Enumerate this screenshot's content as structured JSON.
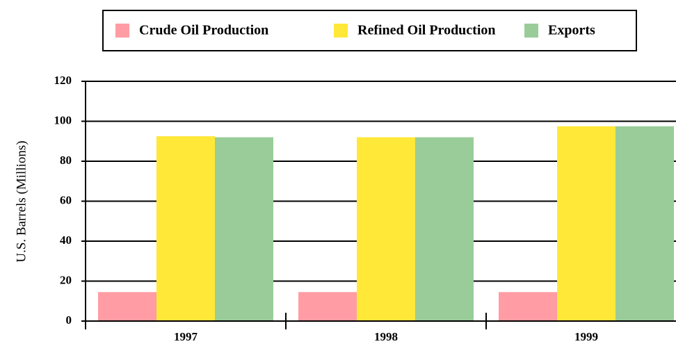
{
  "chart_data": {
    "type": "bar",
    "y_label": "U.S. Barrels (Millions)",
    "categories": [
      "1997",
      "1998",
      "1999"
    ],
    "series": [
      {
        "name": "Crude Oil Production",
        "color": "#ff9ca4",
        "values": [
          14.5,
          14.5,
          14.5
        ]
      },
      {
        "name": "Refined Oil Production",
        "color": "#ffe838",
        "values": [
          92.5,
          92,
          97.5
        ]
      },
      {
        "name": "Exports",
        "color": "#99cc99",
        "values": [
          92,
          92,
          97.5
        ]
      }
    ],
    "ylim": [
      0,
      120
    ],
    "yticks": [
      0,
      20,
      40,
      60,
      80,
      100,
      120
    ],
    "grid": true,
    "legend": "top"
  }
}
